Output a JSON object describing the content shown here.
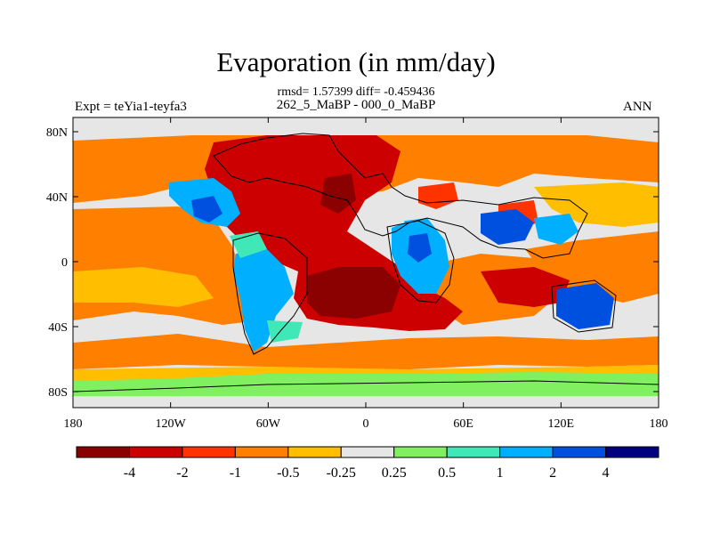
{
  "chart_data": {
    "type": "heatmap",
    "title": "Evaporation (in mm/day)",
    "stats_line": "rmsd= 1.57399 diff= -0.459436",
    "subtitle": "262_5_MaBP - 000_0_MaBP",
    "left_label": "Expt = teYia1-teyfa3",
    "right_label": "ANN",
    "x_ticks": [
      "180",
      "120W",
      "60W",
      "0",
      "60E",
      "120E",
      "180"
    ],
    "y_ticks": [
      "80N",
      "40N",
      "0",
      "40S",
      "80S"
    ],
    "xlim": [
      -180,
      180
    ],
    "ylim": [
      -90,
      90
    ],
    "colorbar": {
      "colors": [
        "#8b0000",
        "#cc0000",
        "#ff3300",
        "#ff7f00",
        "#ffbe00",
        "#e6e6e6",
        "#80f060",
        "#40e8b8",
        "#00b0ff",
        "#0050e0",
        "#000080"
      ],
      "labels": [
        "-4",
        "-2",
        "-1",
        "-0.5",
        "-0.25",
        "0.25",
        "0.5",
        "1",
        "2",
        "4"
      ]
    }
  }
}
